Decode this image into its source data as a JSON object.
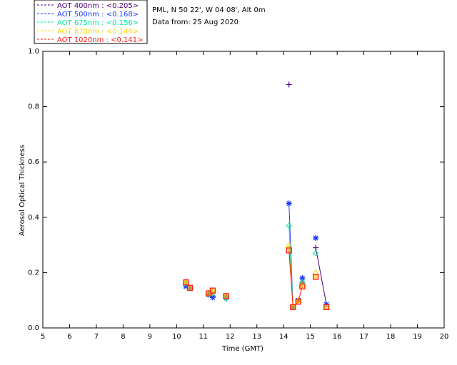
{
  "header": {
    "site_line": "PML, N 50 22', W 04 08', Alt 0m",
    "date_line": "Data from: 25 Aug 2020"
  },
  "chart_data": {
    "type": "scatter",
    "xlabel": "Time (GMT)",
    "ylabel": "Aerosol Optical Thickness",
    "xlim": [
      5,
      20
    ],
    "ylim": [
      0.0,
      1.0
    ],
    "x_ticks": [
      5,
      6,
      7,
      8,
      9,
      10,
      11,
      12,
      13,
      14,
      15,
      16,
      17,
      18,
      19,
      20
    ],
    "y_ticks": [
      0.0,
      0.2,
      0.4,
      0.6,
      0.8,
      1.0
    ],
    "y_tick_labels": [
      "0.0",
      "0.2",
      "0.4",
      "0.6",
      "0.8",
      "1.0"
    ],
    "legend_position": "top-left, outside plot",
    "series": [
      {
        "name": "AOT  400nm : <0.205>",
        "color": "#4b0082",
        "marker": "plus",
        "points": [
          [
            10.35,
            0.155
          ],
          [
            10.5,
            0.145
          ],
          [
            11.2,
            0.125
          ],
          [
            11.35,
            0.115
          ],
          [
            11.85,
            0.115
          ],
          [
            14.2,
            0.88
          ],
          [
            14.35,
            0.075
          ],
          [
            14.55,
            0.1
          ],
          [
            14.7,
            0.165
          ],
          [
            15.2,
            0.29
          ],
          [
            15.6,
            0.085
          ]
        ],
        "line_segments": [
          [
            9,
            10
          ]
        ]
      },
      {
        "name": "AOT  500nm : <0.168>",
        "color": "#1e3cff",
        "marker": "asterisk",
        "points": [
          [
            10.35,
            0.15
          ],
          [
            10.5,
            0.145
          ],
          [
            11.2,
            0.12
          ],
          [
            11.35,
            0.11
          ],
          [
            11.85,
            0.11
          ],
          [
            14.2,
            0.45
          ],
          [
            14.35,
            0.075
          ],
          [
            14.55,
            0.1
          ],
          [
            14.7,
            0.18
          ],
          [
            15.2,
            0.325
          ],
          [
            15.6,
            0.085
          ]
        ],
        "line_segments": [
          [
            5,
            6
          ]
        ]
      },
      {
        "name": "AOT  675nm : <0.156>",
        "color": "#00e5a0",
        "marker": "diamond",
        "points": [
          [
            10.35,
            0.16
          ],
          [
            10.5,
            0.145
          ],
          [
            11.2,
            0.12
          ],
          [
            11.35,
            0.125
          ],
          [
            11.85,
            0.105
          ],
          [
            14.2,
            0.37
          ],
          [
            14.35,
            0.075
          ],
          [
            14.55,
            0.1
          ],
          [
            14.7,
            0.165
          ],
          [
            15.2,
            0.27
          ],
          [
            15.6,
            0.075
          ]
        ],
        "line_segments": [
          [
            5,
            6
          ]
        ]
      },
      {
        "name": "AOT  870nm : <0.144>",
        "color": "#ffd700",
        "marker": "triangle",
        "points": [
          [
            10.35,
            0.165
          ],
          [
            10.5,
            0.145
          ],
          [
            11.2,
            0.125
          ],
          [
            11.35,
            0.13
          ],
          [
            11.85,
            0.115
          ],
          [
            14.2,
            0.3
          ],
          [
            14.35,
            0.075
          ],
          [
            14.55,
            0.1
          ],
          [
            14.7,
            0.155
          ],
          [
            15.2,
            0.2
          ],
          [
            15.6,
            0.075
          ]
        ],
        "line_segments": [
          [
            5,
            6
          ]
        ]
      },
      {
        "name": "AOT 1020nm : <0.141>",
        "color": "#ff1a1a",
        "marker": "square",
        "points": [
          [
            10.35,
            0.165
          ],
          [
            10.5,
            0.145
          ],
          [
            11.2,
            0.125
          ],
          [
            11.35,
            0.135
          ],
          [
            11.85,
            0.115
          ],
          [
            14.2,
            0.28
          ],
          [
            14.35,
            0.075
          ],
          [
            14.55,
            0.095
          ],
          [
            14.7,
            0.15
          ],
          [
            15.2,
            0.185
          ],
          [
            15.6,
            0.075
          ]
        ],
        "line_segments": [
          [
            5,
            6,
            7,
            8
          ]
        ]
      }
    ]
  }
}
